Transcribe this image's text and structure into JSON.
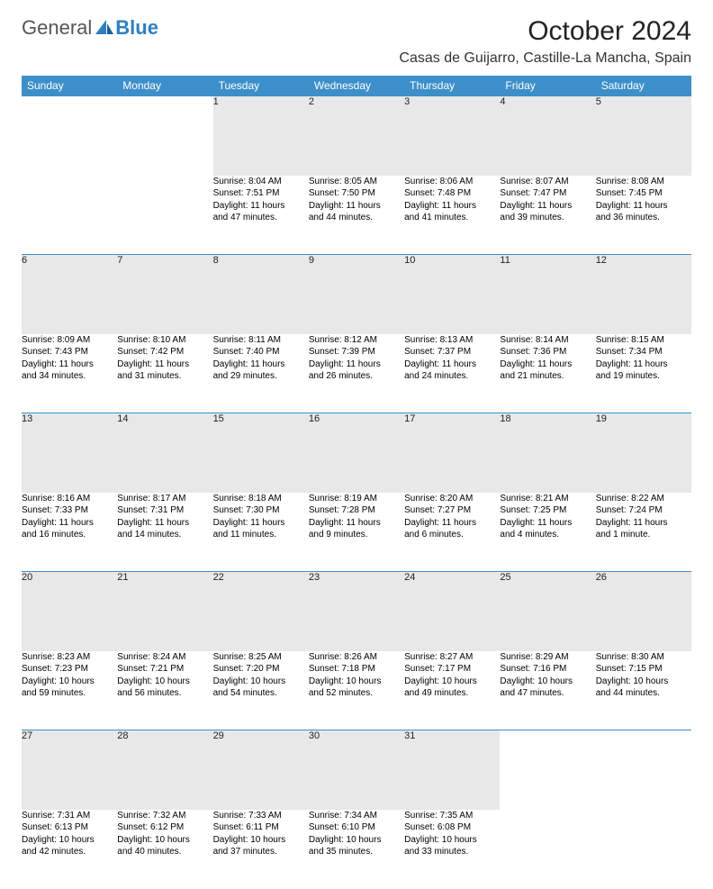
{
  "brand": {
    "part1": "General",
    "part2": "Blue"
  },
  "title": "October 2024",
  "location": "Casas de Guijarro, Castille-La Mancha, Spain",
  "colors": {
    "header_bg": "#3d8fc9",
    "header_text": "#ffffff",
    "daynum_bg": "#e8e8e8",
    "row_divider": "#3d8fc9",
    "page_bg": "#ffffff",
    "text": "#000000",
    "brand_gray": "#555555",
    "brand_blue": "#2d7fc1"
  },
  "weekdays": [
    "Sunday",
    "Monday",
    "Tuesday",
    "Wednesday",
    "Thursday",
    "Friday",
    "Saturday"
  ],
  "lead_blanks": 2,
  "days": [
    {
      "n": 1,
      "sunrise": "8:04 AM",
      "sunset": "7:51 PM",
      "dl_hours": 11,
      "dl_minutes": 47
    },
    {
      "n": 2,
      "sunrise": "8:05 AM",
      "sunset": "7:50 PM",
      "dl_hours": 11,
      "dl_minutes": 44
    },
    {
      "n": 3,
      "sunrise": "8:06 AM",
      "sunset": "7:48 PM",
      "dl_hours": 11,
      "dl_minutes": 41
    },
    {
      "n": 4,
      "sunrise": "8:07 AM",
      "sunset": "7:47 PM",
      "dl_hours": 11,
      "dl_minutes": 39
    },
    {
      "n": 5,
      "sunrise": "8:08 AM",
      "sunset": "7:45 PM",
      "dl_hours": 11,
      "dl_minutes": 36
    },
    {
      "n": 6,
      "sunrise": "8:09 AM",
      "sunset": "7:43 PM",
      "dl_hours": 11,
      "dl_minutes": 34
    },
    {
      "n": 7,
      "sunrise": "8:10 AM",
      "sunset": "7:42 PM",
      "dl_hours": 11,
      "dl_minutes": 31
    },
    {
      "n": 8,
      "sunrise": "8:11 AM",
      "sunset": "7:40 PM",
      "dl_hours": 11,
      "dl_minutes": 29
    },
    {
      "n": 9,
      "sunrise": "8:12 AM",
      "sunset": "7:39 PM",
      "dl_hours": 11,
      "dl_minutes": 26
    },
    {
      "n": 10,
      "sunrise": "8:13 AM",
      "sunset": "7:37 PM",
      "dl_hours": 11,
      "dl_minutes": 24
    },
    {
      "n": 11,
      "sunrise": "8:14 AM",
      "sunset": "7:36 PM",
      "dl_hours": 11,
      "dl_minutes": 21
    },
    {
      "n": 12,
      "sunrise": "8:15 AM",
      "sunset": "7:34 PM",
      "dl_hours": 11,
      "dl_minutes": 19
    },
    {
      "n": 13,
      "sunrise": "8:16 AM",
      "sunset": "7:33 PM",
      "dl_hours": 11,
      "dl_minutes": 16
    },
    {
      "n": 14,
      "sunrise": "8:17 AM",
      "sunset": "7:31 PM",
      "dl_hours": 11,
      "dl_minutes": 14
    },
    {
      "n": 15,
      "sunrise": "8:18 AM",
      "sunset": "7:30 PM",
      "dl_hours": 11,
      "dl_minutes": 11
    },
    {
      "n": 16,
      "sunrise": "8:19 AM",
      "sunset": "7:28 PM",
      "dl_hours": 11,
      "dl_minutes": 9
    },
    {
      "n": 17,
      "sunrise": "8:20 AM",
      "sunset": "7:27 PM",
      "dl_hours": 11,
      "dl_minutes": 6
    },
    {
      "n": 18,
      "sunrise": "8:21 AM",
      "sunset": "7:25 PM",
      "dl_hours": 11,
      "dl_minutes": 4
    },
    {
      "n": 19,
      "sunrise": "8:22 AM",
      "sunset": "7:24 PM",
      "dl_hours": 11,
      "dl_minutes": 1
    },
    {
      "n": 20,
      "sunrise": "8:23 AM",
      "sunset": "7:23 PM",
      "dl_hours": 10,
      "dl_minutes": 59
    },
    {
      "n": 21,
      "sunrise": "8:24 AM",
      "sunset": "7:21 PM",
      "dl_hours": 10,
      "dl_minutes": 56
    },
    {
      "n": 22,
      "sunrise": "8:25 AM",
      "sunset": "7:20 PM",
      "dl_hours": 10,
      "dl_minutes": 54
    },
    {
      "n": 23,
      "sunrise": "8:26 AM",
      "sunset": "7:18 PM",
      "dl_hours": 10,
      "dl_minutes": 52
    },
    {
      "n": 24,
      "sunrise": "8:27 AM",
      "sunset": "7:17 PM",
      "dl_hours": 10,
      "dl_minutes": 49
    },
    {
      "n": 25,
      "sunrise": "8:29 AM",
      "sunset": "7:16 PM",
      "dl_hours": 10,
      "dl_minutes": 47
    },
    {
      "n": 26,
      "sunrise": "8:30 AM",
      "sunset": "7:15 PM",
      "dl_hours": 10,
      "dl_minutes": 44
    },
    {
      "n": 27,
      "sunrise": "7:31 AM",
      "sunset": "6:13 PM",
      "dl_hours": 10,
      "dl_minutes": 42
    },
    {
      "n": 28,
      "sunrise": "7:32 AM",
      "sunset": "6:12 PM",
      "dl_hours": 10,
      "dl_minutes": 40
    },
    {
      "n": 29,
      "sunrise": "7:33 AM",
      "sunset": "6:11 PM",
      "dl_hours": 10,
      "dl_minutes": 37
    },
    {
      "n": 30,
      "sunrise": "7:34 AM",
      "sunset": "6:10 PM",
      "dl_hours": 10,
      "dl_minutes": 35
    },
    {
      "n": 31,
      "sunrise": "7:35 AM",
      "sunset": "6:08 PM",
      "dl_hours": 10,
      "dl_minutes": 33
    }
  ],
  "labels": {
    "sunrise": "Sunrise:",
    "sunset": "Sunset:",
    "daylight": "Daylight:",
    "hours_word": "hours",
    "and_word": "and",
    "minutes_word": "minutes.",
    "minute_word": "minute."
  },
  "typography": {
    "title_fontsize": 30,
    "location_fontsize": 16,
    "weekday_fontsize": 12,
    "daynum_fontsize": 11,
    "detail_fontsize": 10
  }
}
